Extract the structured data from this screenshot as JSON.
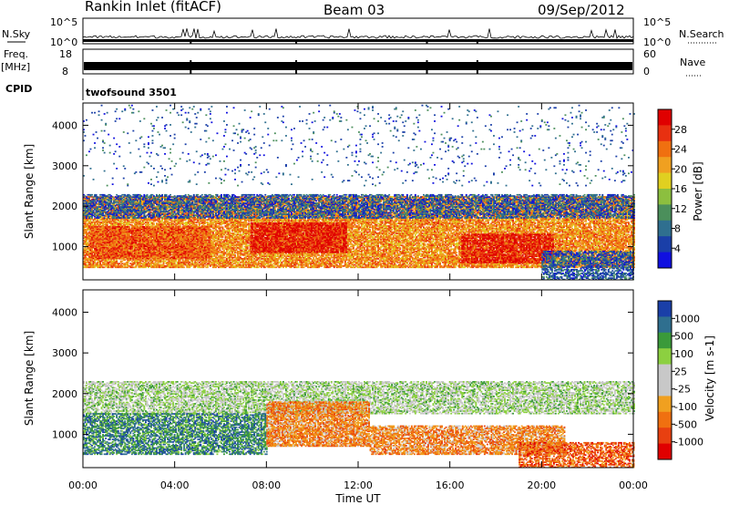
{
  "header": {
    "station": "Rankin Inlet (fitACF)",
    "beam": "Beam 03",
    "date": "09/Sep/2012"
  },
  "strip_labels": {
    "nsky": "N.Sky",
    "nsearch": "N.Search",
    "freq": "Freq.",
    "freq_unit": "[MHz]",
    "nave": "Nave",
    "cpid": "CPID",
    "cpid_value": "twofsound 3501",
    "noise_ticks_left": [
      "10^5",
      "10^0"
    ],
    "noise_ticks_right": [
      "10^5",
      "10^0"
    ],
    "freq_ticks_left": [
      "18",
      "8"
    ],
    "nave_ticks_right": [
      "60",
      "0"
    ]
  },
  "colors": {
    "power_scale": [
      "#1010e0",
      "#1a3fa8",
      "#2f6f8f",
      "#4b8f5b",
      "#8cbf3f",
      "#e0d020",
      "#f0a020",
      "#f07010",
      "#e83010",
      "#e00000"
    ],
    "velocity_scale": [
      "#1a3fa8",
      "#2f6f8f",
      "#3a9a3a",
      "#8cd040",
      "#c8c8c8",
      "#c8c8c8",
      "#f0a020",
      "#f07010",
      "#e84010",
      "#e00000"
    ]
  },
  "chart_data": [
    {
      "type": "heatmap",
      "title": "Power",
      "colorbar_label": "Power [dB]",
      "colorbar_ticks": [
        "4",
        "8",
        "12",
        "16",
        "20",
        "24",
        "28"
      ],
      "ylabel": "Slant Range [km]",
      "yticks": [
        1000,
        2000,
        3000,
        4000
      ],
      "ylim": [
        180,
        4550
      ],
      "xlim": [
        0,
        24
      ],
      "clusters": [
        {
          "t0": 0.0,
          "t1": 24.0,
          "r0": 480,
          "r1": 2250,
          "level": 7,
          "density": 0.8
        },
        {
          "t0": 0.3,
          "t1": 5.5,
          "r0": 700,
          "r1": 1500,
          "level": 8,
          "density": 0.8
        },
        {
          "t0": 7.3,
          "t1": 11.5,
          "r0": 850,
          "r1": 1600,
          "level": 9,
          "density": 0.8
        },
        {
          "t0": 16.5,
          "t1": 20.5,
          "r0": 600,
          "r1": 1300,
          "level": 9,
          "density": 0.75
        },
        {
          "t0": 0.0,
          "t1": 24.0,
          "r0": 1700,
          "r1": 2300,
          "level": 2,
          "density": 0.55
        },
        {
          "t0": 20.0,
          "t1": 24.0,
          "r0": 180,
          "r1": 900,
          "level": 2,
          "density": 0.6
        },
        {
          "t0": 0.0,
          "t1": 24.0,
          "r0": 2500,
          "r1": 4500,
          "level": 2,
          "density": 0.03
        }
      ]
    },
    {
      "type": "heatmap",
      "title": "Velocity",
      "colorbar_label": "Velocity [m s-1]",
      "colorbar_ticks": [
        "1000",
        "500",
        "100",
        "25",
        "-25",
        "-100",
        "-500",
        "-1000"
      ],
      "xlabel": "Time UT",
      "ylabel": "Slant Range [km]",
      "xticks": [
        "00:00",
        "04:00",
        "08:00",
        "12:00",
        "16:00",
        "20:00",
        "00:00"
      ],
      "yticks": [
        1000,
        2000,
        3000,
        4000
      ],
      "ylim": [
        180,
        4550
      ],
      "xlim": [
        0,
        24
      ],
      "clusters": [
        {
          "t0": 0.0,
          "t1": 24.0,
          "r0": 1500,
          "r1": 2300,
          "level": 4,
          "density": 0.6
        },
        {
          "t0": 0.0,
          "t1": 8.0,
          "r0": 500,
          "r1": 1500,
          "level": 2,
          "density": 0.65
        },
        {
          "t0": 8.0,
          "t1": 12.5,
          "r0": 700,
          "r1": 1800,
          "level": 7,
          "density": 0.8
        },
        {
          "t0": 12.5,
          "t1": 21.0,
          "r0": 500,
          "r1": 1200,
          "level": 7,
          "density": 0.7
        },
        {
          "t0": 19.0,
          "t1": 24.0,
          "r0": 180,
          "r1": 800,
          "level": 8,
          "density": 0.6
        }
      ]
    }
  ]
}
